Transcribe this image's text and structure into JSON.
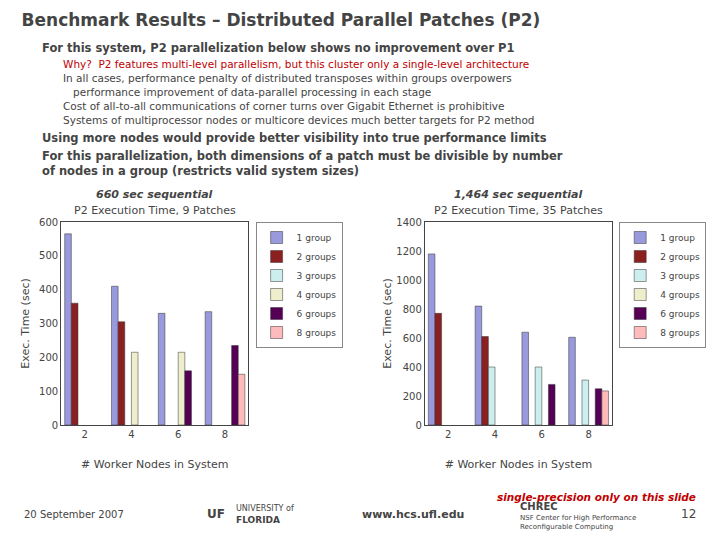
{
  "title": "Benchmark Results – Distributed Parallel Patches (P2)",
  "annotations": [
    {
      "text": "For this system, P2 parallelization below shows no improvement over P1"
    },
    {
      "text": "Why?  P2 features multi-level parallelism, but this cluster only a single-level architecture",
      "color": "#C00000"
    },
    {
      "text": "In all cases, performance penalty of distributed transposes within groups overpowers"
    },
    {
      "text": "performance improvement of data-parallel processing in each stage"
    },
    {
      "text": "Cost of all-to-all communications of corner turns over Gigabit Ethernet is prohibitive"
    },
    {
      "text": "Systems of multiprocessor nodes or multicore devices much better targets for P2 method"
    },
    {
      "text": "Using more nodes would provide better visibility into true performance limits"
    },
    {
      "text": "For this parallelization, both dimensions of a patch must be divisible by number"
    },
    {
      "text": "of nodes in a group (restricts valid system sizes)"
    },
    {
      "text": "single-precision only on this slide",
      "color": "#C00000"
    },
    {
      "text": "20 September 2007"
    },
    {
      "text": "UF"
    },
    {
      "text": "UNIVERSITY of"
    },
    {
      "text": "FLORIDA"
    },
    {
      "text": "www.hcs.ufl.edu"
    },
    {
      "text": "CHREC"
    },
    {
      "text": "NSF Center for High Performance"
    },
    {
      "text": "Reconfigurable Computing"
    },
    {
      "text": "12"
    }
  ],
  "chart_data": [
    {
      "type": "bar",
      "title": "P2 Execution Time, 9 Patches",
      "subtitle": "660 sec sequential",
      "xlabel": "# Worker Nodes in System",
      "ylabel": "Exec. Time (sec)",
      "categories": [
        2,
        4,
        6,
        8
      ],
      "series": [
        {
          "name": "1 group",
          "color": "#9999DD",
          "values": [
            565,
            410,
            330,
            335
          ]
        },
        {
          "name": "2 groups",
          "color": "#8B2020",
          "values": [
            360,
            305,
            null,
            null
          ]
        },
        {
          "name": "3 groups",
          "color": "#CCEEEE",
          "values": [
            null,
            null,
            null,
            null
          ]
        },
        {
          "name": "4 groups",
          "color": "#EEEECC",
          "values": [
            null,
            215,
            215,
            null
          ]
        },
        {
          "name": "6 groups",
          "color": "#550055",
          "values": [
            null,
            null,
            160,
            235
          ]
        },
        {
          "name": "8 groups",
          "color": "#FFBBBB",
          "values": [
            null,
            null,
            null,
            150
          ]
        }
      ],
      "ylim": [
        0,
        600
      ],
      "yticks": [
        0,
        100,
        200,
        300,
        400,
        500,
        600
      ],
      "grid": false,
      "legend": "right"
    },
    {
      "type": "bar",
      "title": "P2 Execution Time, 35 Patches",
      "subtitle": "1,464 sec sequential",
      "xlabel": "# Worker Nodes in System",
      "ylabel": "Exec. Time (sec)",
      "categories": [
        2,
        4,
        6,
        8
      ],
      "series": [
        {
          "name": "1 group",
          "color": "#9999DD",
          "values": [
            1180,
            820,
            640,
            605
          ]
        },
        {
          "name": "2 groups",
          "color": "#8B2020",
          "values": [
            770,
            610,
            null,
            null
          ]
        },
        {
          "name": "3 groups",
          "color": "#CCEEEE",
          "values": [
            null,
            400,
            400,
            310
          ]
        },
        {
          "name": "4 groups",
          "color": "#EEEECC",
          "values": [
            null,
            null,
            null,
            null
          ]
        },
        {
          "name": "6 groups",
          "color": "#550055",
          "values": [
            null,
            null,
            280,
            250
          ]
        },
        {
          "name": "8 groups",
          "color": "#FFBBBB",
          "values": [
            null,
            null,
            null,
            235
          ]
        }
      ],
      "ylim": [
        0,
        1400
      ],
      "yticks": [
        0,
        200,
        400,
        600,
        800,
        1000,
        1200,
        1400
      ],
      "grid": false,
      "legend": "right"
    }
  ]
}
